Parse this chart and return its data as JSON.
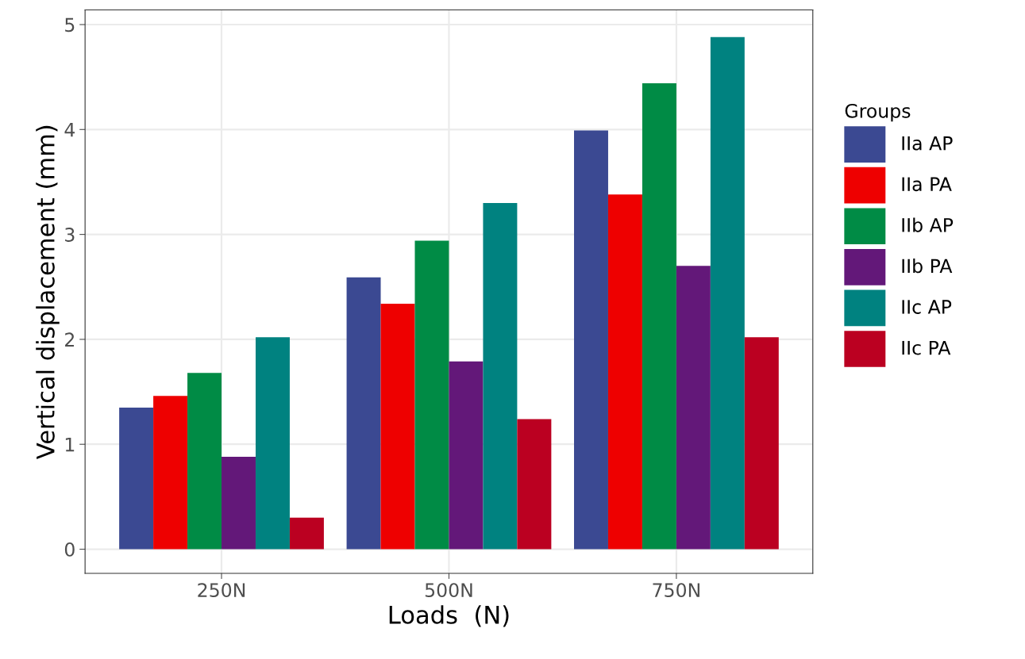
{
  "chart_data": {
    "type": "bar",
    "xlabel": "Loads  (N)",
    "ylabel": "Vertical displacement (mm)",
    "legend_title": "Groups",
    "categories": [
      "250N",
      "500N",
      "750N"
    ],
    "series": [
      {
        "name": "IIa AP",
        "color": "#3b4992",
        "values": [
          1.35,
          2.59,
          3.99
        ]
      },
      {
        "name": "IIa PA",
        "color": "#ee0000",
        "values": [
          1.46,
          2.34,
          3.38
        ]
      },
      {
        "name": "IIb AP",
        "color": "#008b45",
        "values": [
          1.68,
          2.94,
          4.44
        ]
      },
      {
        "name": "IIb PA",
        "color": "#631879",
        "values": [
          0.88,
          1.79,
          2.7
        ]
      },
      {
        "name": "IIc AP",
        "color": "#008280",
        "values": [
          2.02,
          3.3,
          4.88
        ]
      },
      {
        "name": "IIc PA",
        "color": "#bb0021",
        "values": [
          0.3,
          1.24,
          2.02
        ]
      }
    ],
    "ylim": [
      -0.23,
      5.14
    ],
    "yticks": [
      0,
      1,
      2,
      3,
      4,
      5
    ],
    "grid": true,
    "legend": "right"
  }
}
